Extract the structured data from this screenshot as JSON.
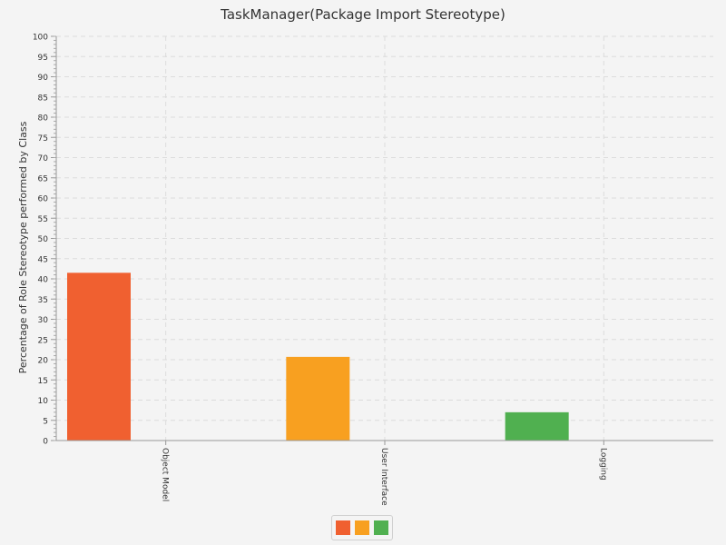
{
  "chart_data": {
    "type": "bar",
    "title": "TaskManager(Package Import Stereotype)",
    "xlabel": "",
    "ylabel": "Percentage of Role Stereotype performed by Class",
    "categories": [
      "Object Model",
      "User Interface",
      "Logging"
    ],
    "values": [
      41.5,
      20.7,
      7.0
    ],
    "colors": [
      "#f06030",
      "#f8a020",
      "#50b050"
    ],
    "ylim": [
      0,
      100
    ],
    "ytick_step": 5,
    "yticks": [
      "0",
      "5",
      "10",
      "15",
      "20",
      "25",
      "30",
      "35",
      "40",
      "45",
      "50",
      "55",
      "60",
      "65",
      "70",
      "75",
      "80",
      "85",
      "90",
      "95",
      "100"
    ],
    "grid": true,
    "legend": {
      "placement": "bottom-center",
      "entries": [
        "",
        "",
        ""
      ]
    }
  }
}
